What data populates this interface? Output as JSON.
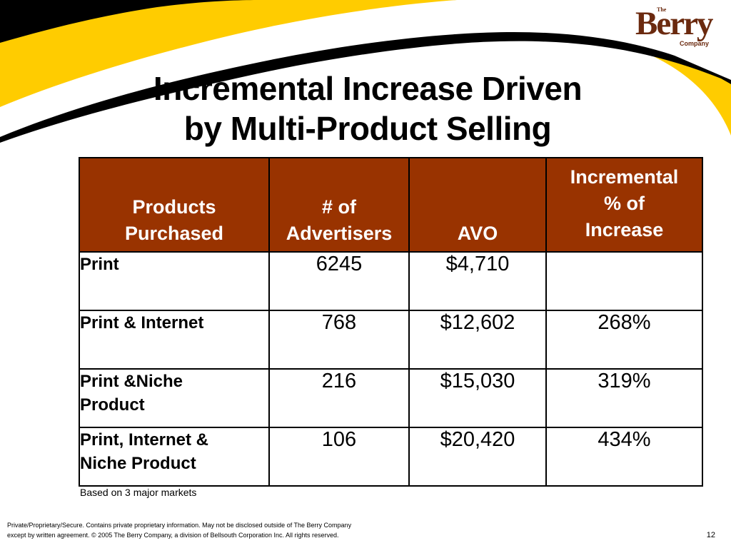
{
  "slide": {
    "title_line1": "Incremental Increase Driven",
    "title_line2": "by Multi-Product Selling",
    "logo": {
      "the": "The",
      "name": "Berry",
      "company": "Company"
    },
    "colors": {
      "header_bg": "#993300",
      "header_text": "#ffffff",
      "swoosh_yellow": "#ffcc00",
      "swoosh_black": "#000000",
      "logo_brown": "#6b2a0f"
    },
    "table": {
      "headers": {
        "products": [
          "Products",
          "Purchased"
        ],
        "advertisers": [
          "# of",
          "Advertisers"
        ],
        "avo": [
          "AVO"
        ],
        "incremental": [
          "Incremental",
          "% of",
          "Increase"
        ]
      },
      "rows": [
        {
          "product": [
            "Print"
          ],
          "advertisers": "6245",
          "avo": "$4,710",
          "increase": ""
        },
        {
          "product": [
            "Print & Internet"
          ],
          "advertisers": "768",
          "avo": "$12,602",
          "increase": "268%"
        },
        {
          "product": [
            "Print &Niche",
            "Product"
          ],
          "advertisers": "216",
          "avo": "$15,030",
          "increase": "319%"
        },
        {
          "product": [
            "Print, Internet &",
            "Niche Product"
          ],
          "advertisers": "106",
          "avo": "$20,420",
          "increase": "434%"
        }
      ]
    },
    "note": "Based on 3 major markets",
    "footer_line1": "Private/Proprietary/Secure.  Contains private proprietary information. May not be disclosed outside of The Berry Company",
    "footer_line2": "except by written agreement.  © 2005 The Berry Company, a division of Bellsouth Corporation Inc. All rights reserved.",
    "page_number": "12"
  }
}
